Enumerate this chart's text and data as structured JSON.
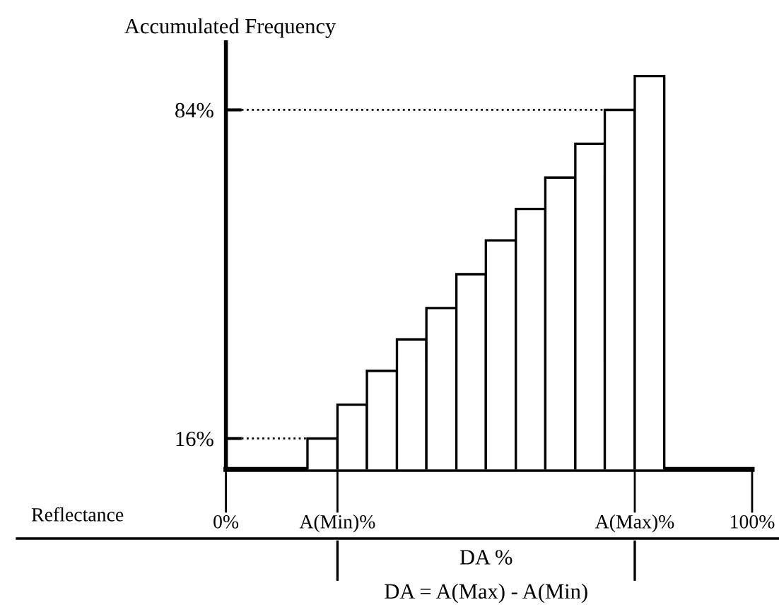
{
  "chart_data": {
    "type": "histogram",
    "ylabel": "Accumulated Frequency",
    "xlabel": "Reflectance",
    "bins": [
      15.5,
      21.2,
      26.8,
      32.5,
      38.1,
      43.8,
      49.4,
      55.1,
      60.7,
      66.4,
      72.0,
      77.7,
      83.3
    ],
    "values": [
      16,
      23,
      30,
      36.5,
      43,
      50,
      57,
      63.5,
      70,
      77,
      84,
      91
    ],
    "color": "#ffffff",
    "xlim": [
      0,
      100
    ],
    "xticks": [
      {
        "value": 0,
        "label": "0%"
      },
      {
        "value": 21.2,
        "label": "A(Min)%"
      },
      {
        "value": 77.7,
        "label": "A(Max)%"
      },
      {
        "value": 100,
        "label": "100%"
      }
    ],
    "ylim": [
      9.6,
      98
    ],
    "yticks": [
      {
        "value": 16,
        "label": "16%"
      },
      {
        "value": 84,
        "label": "84%"
      }
    ],
    "ref_lines": [
      {
        "axis": "y",
        "value": 16,
        "line_style": "dotted"
      },
      {
        "axis": "y",
        "value": 84,
        "line_style": "dotted"
      }
    ],
    "annotations": [
      "DA %",
      "DA = A(Max) - A(Min)"
    ],
    "grid": false,
    "legend": false
  }
}
